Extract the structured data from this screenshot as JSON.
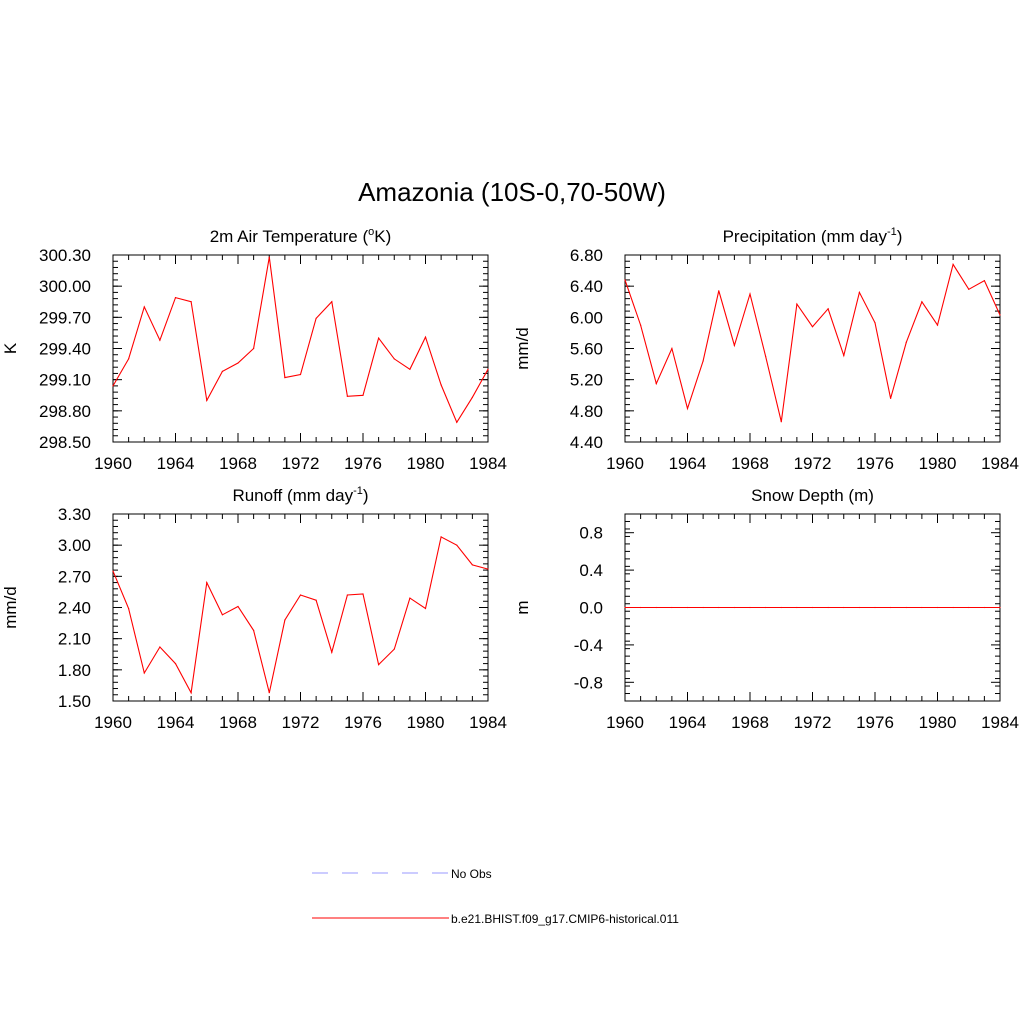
{
  "figure": {
    "title": "Amazonia (10S-0,70-50W)"
  },
  "legend": {
    "entries": [
      {
        "label": "No Obs",
        "color": "#9999ff",
        "style": "dashed"
      },
      {
        "label": "b.e21.BHIST.f09_g17.CMIP6-historical.011",
        "color": "#ff0000",
        "style": "solid"
      }
    ]
  },
  "chart_data": [
    {
      "type": "line",
      "title": "2m Air Temperature (oK)",
      "title_parts": {
        "pre": "2m Air Temperature (",
        "sup": "o",
        "post": "K)"
      },
      "xlabel": "",
      "ylabel": "K",
      "xlim": [
        1960,
        1984
      ],
      "ylim": [
        298.5,
        300.3
      ],
      "xticks": [
        "1960",
        "1964",
        "1968",
        "1972",
        "1976",
        "1980",
        "1984"
      ],
      "yticks": [
        "298.50",
        "298.80",
        "299.10",
        "299.40",
        "299.70",
        "300.00",
        "300.30"
      ],
      "x": [
        1960,
        1961,
        1962,
        1963,
        1964,
        1965,
        1966,
        1967,
        1968,
        1969,
        1970,
        1971,
        1972,
        1973,
        1974,
        1975,
        1976,
        1977,
        1978,
        1979,
        1980,
        1981,
        1982,
        1983,
        1984
      ],
      "series": [
        {
          "name": "b.e21.BHIST.f09_g17.CMIP6-historical.011",
          "color": "#ff0000",
          "values": [
            299.04,
            299.3,
            299.8,
            299.48,
            299.89,
            299.85,
            298.9,
            299.18,
            299.26,
            299.4,
            300.28,
            299.12,
            299.15,
            299.69,
            299.85,
            298.94,
            298.95,
            299.5,
            299.3,
            299.2,
            299.51,
            299.05,
            298.69,
            298.93,
            299.2
          ]
        }
      ]
    },
    {
      "type": "line",
      "title": "Precipitation (mm day-1)",
      "title_parts": {
        "pre": "Precipitation (mm day",
        "sup": "-1",
        "post": ")"
      },
      "xlabel": "",
      "ylabel": "mm/d",
      "xlim": [
        1960,
        1984
      ],
      "ylim": [
        4.4,
        6.8
      ],
      "xticks": [
        "1960",
        "1964",
        "1968",
        "1972",
        "1976",
        "1980",
        "1984"
      ],
      "yticks": [
        "4.40",
        "4.80",
        "5.20",
        "5.60",
        "6.00",
        "6.40",
        "6.80"
      ],
      "x": [
        1960,
        1961,
        1962,
        1963,
        1964,
        1965,
        1966,
        1967,
        1968,
        1969,
        1970,
        1971,
        1972,
        1973,
        1974,
        1975,
        1976,
        1977,
        1978,
        1979,
        1980,
        1981,
        1982,
        1983,
        1984
      ],
      "series": [
        {
          "name": "b.e21.BHIST.f09_g17.CMIP6-historical.011",
          "color": "#ff0000",
          "values": [
            6.48,
            5.9,
            5.15,
            5.6,
            4.83,
            5.44,
            6.34,
            5.64,
            6.3,
            5.5,
            4.66,
            6.17,
            5.88,
            6.11,
            5.51,
            6.32,
            5.93,
            4.96,
            5.68,
            6.2,
            5.9,
            6.68,
            6.36,
            6.47,
            6.03
          ]
        }
      ]
    },
    {
      "type": "line",
      "title": "Runoff (mm day-1)",
      "title_parts": {
        "pre": "Runoff (mm day",
        "sup": "-1",
        "post": ")"
      },
      "xlabel": "",
      "ylabel": "mm/d",
      "xlim": [
        1960,
        1984
      ],
      "ylim": [
        1.5,
        3.3
      ],
      "xticks": [
        "1960",
        "1964",
        "1968",
        "1972",
        "1976",
        "1980",
        "1984"
      ],
      "yticks": [
        "1.50",
        "1.80",
        "2.10",
        "2.40",
        "2.70",
        "3.00",
        "3.30"
      ],
      "x": [
        1960,
        1961,
        1962,
        1963,
        1964,
        1965,
        1966,
        1967,
        1968,
        1969,
        1970,
        1971,
        1972,
        1973,
        1974,
        1975,
        1976,
        1977,
        1978,
        1979,
        1980,
        1981,
        1982,
        1983,
        1984
      ],
      "series": [
        {
          "name": "b.e21.BHIST.f09_g17.CMIP6-historical.011",
          "color": "#ff0000",
          "values": [
            2.75,
            2.39,
            1.77,
            2.02,
            1.86,
            1.58,
            2.64,
            2.33,
            2.41,
            2.18,
            1.58,
            2.28,
            2.52,
            2.47,
            1.97,
            2.52,
            2.53,
            1.85,
            2.0,
            2.49,
            2.39,
            3.08,
            3.0,
            2.81,
            2.77
          ]
        }
      ]
    },
    {
      "type": "line",
      "title": "Snow Depth (m)",
      "title_parts": {
        "pre": "Snow Depth (m)",
        "sup": "",
        "post": ""
      },
      "xlabel": "",
      "ylabel": "m",
      "xlim": [
        1960,
        1984
      ],
      "ylim": [
        -1.0,
        1.0
      ],
      "xticks": [
        "1960",
        "1964",
        "1968",
        "1972",
        "1976",
        "1980",
        "1984"
      ],
      "yticks": [
        "-0.8",
        "-0.4",
        "0.0",
        "0.4",
        "0.8"
      ],
      "ytick_values": [
        -0.8,
        -0.4,
        0.0,
        0.4,
        0.8
      ],
      "x": [
        1960,
        1961,
        1962,
        1963,
        1964,
        1965,
        1966,
        1967,
        1968,
        1969,
        1970,
        1971,
        1972,
        1973,
        1974,
        1975,
        1976,
        1977,
        1978,
        1979,
        1980,
        1981,
        1982,
        1983,
        1984
      ],
      "series": [
        {
          "name": "b.e21.BHIST.f09_g17.CMIP6-historical.011",
          "color": "#ff0000",
          "values": [
            0,
            0,
            0,
            0,
            0,
            0,
            0,
            0,
            0,
            0,
            0,
            0,
            0,
            0,
            0,
            0,
            0,
            0,
            0,
            0,
            0,
            0,
            0,
            0,
            0
          ]
        }
      ]
    }
  ]
}
